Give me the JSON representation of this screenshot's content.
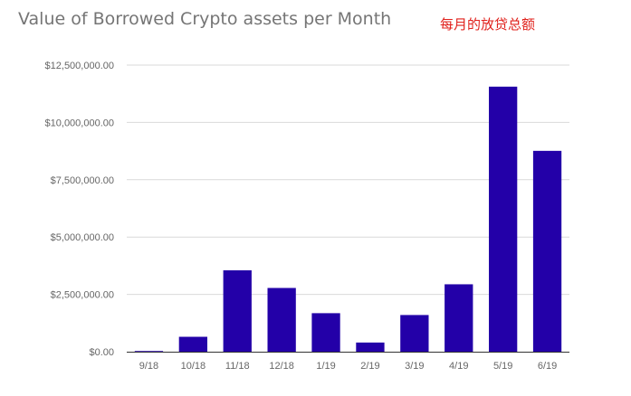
{
  "chart_data": {
    "type": "bar",
    "title": "Value of Borrowed Crypto assets per Month",
    "annotation": "每月的放贷总额",
    "categories": [
      "9/18",
      "10/18",
      "11/18",
      "12/18",
      "1/19",
      "2/19",
      "3/19",
      "4/19",
      "5/19",
      "6/19"
    ],
    "values": [
      30000,
      650000,
      3550000,
      2780000,
      1680000,
      400000,
      1600000,
      2940000,
      11560000,
      8760000
    ],
    "ylim": [
      0,
      12500000
    ],
    "yticks": [
      0,
      2500000,
      5000000,
      7500000,
      10000000,
      12500000
    ],
    "ytick_labels": [
      "$0.00",
      "$2,500,000.00",
      "$5,000,000.00",
      "$7,500,000.00",
      "$10,000,000.00",
      "$12,500,000.00"
    ],
    "xlabel": "",
    "ylabel": "",
    "grid": true,
    "bar_color": "#2300a8",
    "axis_color": "#333333",
    "grid_color": "#d9d9d9",
    "annotation_color": "#e0201b",
    "title_color": "#757575"
  }
}
